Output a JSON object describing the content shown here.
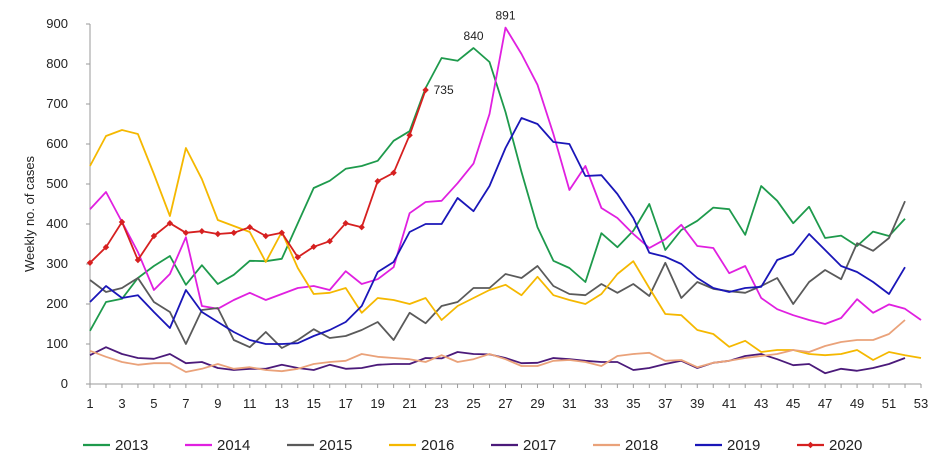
{
  "chart_data": {
    "type": "line",
    "ylabel": "Weekly no. of cases",
    "xlabel": "",
    "ylim": [
      0,
      900
    ],
    "yticks": [
      0,
      100,
      200,
      300,
      400,
      500,
      600,
      700,
      800,
      900
    ],
    "xlim": [
      1,
      53
    ],
    "xticks": [
      1,
      3,
      5,
      7,
      9,
      11,
      13,
      15,
      17,
      19,
      21,
      23,
      25,
      27,
      29,
      31,
      33,
      35,
      37,
      39,
      41,
      43,
      45,
      47,
      49,
      51,
      53
    ],
    "grid": false,
    "legend": "bottom",
    "annotations": [
      {
        "series": "2013",
        "week": 25,
        "text": "840"
      },
      {
        "series": "2014",
        "week": 27,
        "text": "891"
      },
      {
        "series": "2020",
        "week": 22,
        "text": "735"
      }
    ],
    "series": [
      {
        "name": "2013",
        "color": "#1e9a4c",
        "markers": false,
        "values": [
          133,
          205,
          213,
          265,
          295,
          320,
          248,
          297,
          250,
          273,
          308,
          307,
          313,
          402,
          490,
          508,
          538,
          545,
          558,
          608,
          632,
          740,
          815,
          808,
          840,
          805,
          680,
          530,
          392,
          308,
          290,
          255,
          377,
          342,
          383,
          450,
          335,
          385,
          408,
          441,
          437,
          373,
          495,
          458,
          402,
          443,
          365,
          371,
          345,
          381,
          370,
          413
        ]
      },
      {
        "name": "2014",
        "color": "#e020e0",
        "markers": false,
        "values": [
          437,
          480,
          405,
          330,
          235,
          275,
          367,
          195,
          188,
          210,
          228,
          210,
          225,
          240,
          245,
          235,
          282,
          250,
          262,
          292,
          427,
          455,
          458,
          502,
          551,
          675,
          891,
          825,
          748,
          625,
          485,
          545,
          440,
          415,
          375,
          340,
          362,
          398,
          345,
          340,
          277,
          295,
          215,
          187,
          172,
          160,
          150,
          165,
          212,
          178,
          199,
          188,
          160
        ]
      },
      {
        "name": "2015",
        "color": "#5a5a5a",
        "markers": false,
        "values": [
          260,
          230,
          240,
          265,
          205,
          180,
          100,
          185,
          190,
          110,
          92,
          130,
          90,
          110,
          137,
          115,
          120,
          135,
          155,
          110,
          178,
          152,
          195,
          205,
          240,
          240,
          275,
          265,
          295,
          245,
          225,
          222,
          250,
          228,
          250,
          220,
          303,
          215,
          255,
          238,
          232,
          228,
          245,
          265,
          200,
          255,
          285,
          262,
          352,
          333,
          365,
          457
        ]
      },
      {
        "name": "2016",
        "color": "#f5b800",
        "markers": false,
        "values": [
          545,
          620,
          635,
          625,
          525,
          420,
          590,
          512,
          410,
          395,
          380,
          305,
          380,
          290,
          225,
          228,
          240,
          178,
          215,
          210,
          200,
          215,
          160,
          195,
          215,
          235,
          248,
          222,
          268,
          222,
          210,
          200,
          225,
          275,
          307,
          240,
          175,
          172,
          135,
          125,
          93,
          108,
          80,
          85,
          85,
          75,
          72,
          75,
          85,
          60,
          80,
          72,
          65
        ]
      },
      {
        "name": "2017",
        "color": "#4b1a7a",
        "markers": false,
        "values": [
          72,
          92,
          75,
          65,
          63,
          75,
          52,
          55,
          40,
          35,
          38,
          38,
          48,
          40,
          35,
          48,
          38,
          40,
          48,
          50,
          50,
          65,
          64,
          80,
          75,
          74,
          65,
          52,
          53,
          65,
          62,
          58,
          55,
          55,
          35,
          40,
          50,
          58,
          40,
          53,
          58,
          70,
          75,
          62,
          47,
          50,
          27,
          38,
          33,
          40,
          50,
          65
        ]
      },
      {
        "name": "2018",
        "color": "#eaa27a",
        "markers": false,
        "values": [
          83,
          68,
          55,
          48,
          52,
          52,
          30,
          38,
          50,
          38,
          42,
          35,
          32,
          38,
          50,
          55,
          58,
          75,
          68,
          65,
          62,
          55,
          72,
          55,
          62,
          75,
          62,
          45,
          45,
          58,
          60,
          55,
          45,
          70,
          75,
          78,
          58,
          60,
          42,
          53,
          58,
          65,
          70,
          75,
          85,
          80,
          95,
          105,
          110,
          110,
          125,
          160
        ]
      },
      {
        "name": "2019",
        "color": "#1a16b8",
        "markers": false,
        "values": [
          205,
          245,
          215,
          222,
          180,
          140,
          235,
          180,
          155,
          130,
          110,
          100,
          100,
          102,
          120,
          135,
          155,
          195,
          280,
          305,
          380,
          400,
          400,
          465,
          432,
          495,
          590,
          665,
          650,
          605,
          600,
          520,
          522,
          475,
          415,
          328,
          318,
          300,
          265,
          240,
          230,
          240,
          243,
          310,
          325,
          375,
          335,
          295,
          280,
          255,
          225,
          292
        ]
      },
      {
        "name": "2020",
        "color": "#d62020",
        "markers": true,
        "values": [
          303,
          342,
          405,
          310,
          370,
          402,
          378,
          382,
          375,
          378,
          392,
          370,
          378,
          317,
          343,
          357,
          402,
          392,
          507,
          528,
          622,
          735
        ]
      }
    ]
  }
}
